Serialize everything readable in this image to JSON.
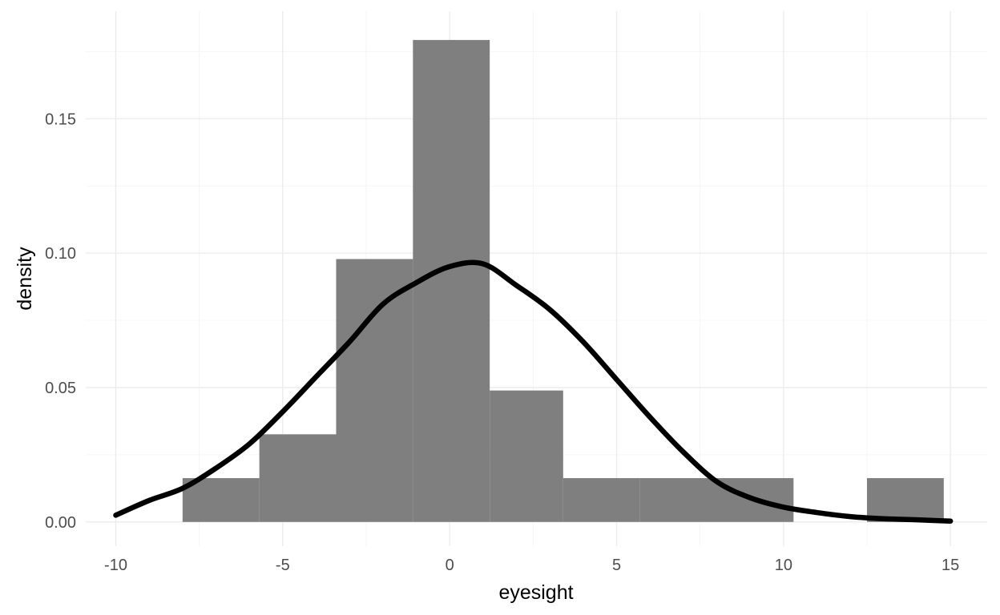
{
  "chart_data": {
    "type": "bar",
    "subtype": "histogram-with-density",
    "xlabel": "eyesight",
    "ylabel": "density",
    "xlim": [
      -10.9,
      16.1
    ],
    "ylim": [
      -0.009,
      0.19
    ],
    "x_ticks": [
      -10,
      -5,
      0,
      5,
      10,
      15
    ],
    "x_tick_labels": [
      "-10",
      "-5",
      "0",
      "5",
      "10",
      "15"
    ],
    "y_ticks": [
      0.0,
      0.05,
      0.1,
      0.15
    ],
    "y_tick_labels": [
      "0.00",
      "0.05",
      "0.10",
      "0.15"
    ],
    "grid": true,
    "legend": "none",
    "bins": [
      {
        "x0": -8.0,
        "x1": -5.7,
        "density": 0.0163
      },
      {
        "x0": -5.7,
        "x1": -3.4,
        "density": 0.0326
      },
      {
        "x0": -3.4,
        "x1": -1.1,
        "density": 0.0978
      },
      {
        "x0": -1.1,
        "x1": 1.2,
        "density": 0.1793
      },
      {
        "x0": 1.2,
        "x1": 3.4,
        "density": 0.0489
      },
      {
        "x0": 3.4,
        "x1": 5.7,
        "density": 0.0163
      },
      {
        "x0": 5.7,
        "x1": 8.0,
        "density": 0.0163
      },
      {
        "x0": 8.0,
        "x1": 10.3,
        "density": 0.0163
      },
      {
        "x0": 10.3,
        "x1": 12.5,
        "density": 0.0
      },
      {
        "x0": 12.5,
        "x1": 14.8,
        "density": 0.0163
      }
    ],
    "density_curve": {
      "x": [
        -10,
        -9,
        -8,
        -7,
        -6,
        -5,
        -4,
        -3,
        -2,
        -1,
        0,
        1,
        2,
        3,
        4,
        5,
        6,
        7,
        8,
        9,
        10,
        11,
        12,
        13,
        14,
        15
      ],
      "y": [
        0.0025,
        0.008,
        0.0125,
        0.02,
        0.029,
        0.041,
        0.054,
        0.067,
        0.081,
        0.089,
        0.095,
        0.096,
        0.088,
        0.079,
        0.067,
        0.053,
        0.039,
        0.026,
        0.015,
        0.009,
        0.0055,
        0.0035,
        0.002,
        0.0012,
        0.0008,
        0.0003
      ]
    },
    "colors": {
      "bar_fill": "#7f7f7f",
      "curve": "#000000",
      "grid_major": "#ebebeb",
      "grid_minor": "#f5f5f5",
      "tick_text": "#4d4d4d",
      "axis_title": "#000000"
    }
  }
}
